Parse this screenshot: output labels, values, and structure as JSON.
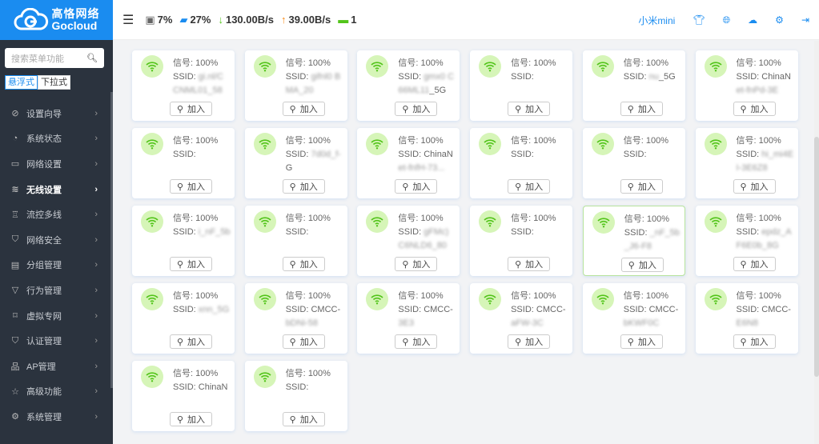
{
  "brand": {
    "cn": "高恪网络",
    "en": "Gocloud",
    "color": "#1a8cf0"
  },
  "sidebar": {
    "search_placeholder": "搜索菜单功能",
    "modes": [
      "悬浮式",
      "下拉式"
    ],
    "active_mode": 0,
    "items": [
      {
        "label": "设置向导",
        "icon": "compass-icon",
        "glyph": "⊘"
      },
      {
        "label": "系统状态",
        "icon": "gauge-icon",
        "glyph": "◔"
      },
      {
        "label": "网络设置",
        "icon": "monitor-icon",
        "glyph": "▭"
      },
      {
        "label": "无线设置",
        "icon": "wifi-icon",
        "glyph": "≋",
        "active": true
      },
      {
        "label": "流控多线",
        "icon": "flow-icon",
        "glyph": "♖"
      },
      {
        "label": "网络安全",
        "icon": "shield-icon",
        "glyph": "⛉"
      },
      {
        "label": "分组管理",
        "icon": "group-icon",
        "glyph": "▤"
      },
      {
        "label": "行为管理",
        "icon": "filter-icon",
        "glyph": "▽"
      },
      {
        "label": "虚拟专网",
        "icon": "vpn-icon",
        "glyph": "⌑"
      },
      {
        "label": "认证管理",
        "icon": "shield-check-icon",
        "glyph": "⛉"
      },
      {
        "label": "AP管理",
        "icon": "sitemap-icon",
        "glyph": "品"
      },
      {
        "label": "高级功能",
        "icon": "pin-icon",
        "glyph": "☆"
      },
      {
        "label": "系统管理",
        "icon": "gear-icon",
        "glyph": "⚙"
      }
    ]
  },
  "topbar": {
    "cpu": "7%",
    "memory": "27%",
    "download": "130.00B/s",
    "upload": "39.00B/s",
    "devices": "1",
    "device_name": "小米mini",
    "colors": {
      "download": "#52c41a",
      "upload": "#fa8c16",
      "devices": "#52c41a",
      "accent": "#1a8cf0"
    }
  },
  "cards": {
    "signal_label": "信号:",
    "ssid_label": "SSID:",
    "join_label": "加入",
    "items": [
      {
        "signal": "100%",
        "ssid": "",
        "blur": "gi.nl/C CNML01_58"
      },
      {
        "signal": "100%",
        "ssid": "",
        "blur": "gifnl0 BMA_20"
      },
      {
        "signal": "100%",
        "ssid": "",
        "blur": "gmx0 C66ML11",
        "tail": "_5G"
      },
      {
        "signal": "100%",
        "ssid": "",
        "blur": ""
      },
      {
        "signal": "100%",
        "ssid": "",
        "blur": "nu",
        "tail": "_5G"
      },
      {
        "signal": "100%",
        "ssid": "ChinaN",
        "blur": "et-fnPd-3E"
      },
      {
        "signal": "100%",
        "ssid": "",
        "blur": ""
      },
      {
        "signal": "100%",
        "ssid": "",
        "blur": "7d0d_f-",
        "tail": "G"
      },
      {
        "signal": "100%",
        "ssid": "ChinaN",
        "blur": "et-fnfH-73..."
      },
      {
        "signal": "100%",
        "ssid": "",
        "blur": ""
      },
      {
        "signal": "100%",
        "ssid": "",
        "blur": ""
      },
      {
        "signal": "100%",
        "ssid": "",
        "blur": "hi_mi4E I-3E6Z8"
      },
      {
        "signal": "100%",
        "ssid": "",
        "blur": "i_nF_5b"
      },
      {
        "signal": "100%",
        "ssid": "",
        "blur": ""
      },
      {
        "signal": "100%",
        "ssid": "",
        "blur": "gFMc) C6NLD6_80"
      },
      {
        "signal": "100%",
        "ssid": "",
        "blur": ""
      },
      {
        "signal": "100%",
        "ssid": "",
        "blur": "_nF_5b _J6-F8",
        "hl": true
      },
      {
        "signal": "100%",
        "ssid": "",
        "blur": "epdz_A F6E0b_8G"
      },
      {
        "signal": "100%",
        "ssid": "",
        "blur": "xnn_5G"
      },
      {
        "signal": "100%",
        "ssid": "CMCC-",
        "blur": "bDNi-58"
      },
      {
        "signal": "100%",
        "ssid": "CMCC-",
        "blur": "3E3"
      },
      {
        "signal": "100%",
        "ssid": "CMCC-",
        "blur": "aFW-3C"
      },
      {
        "signal": "100%",
        "ssid": "CMCC-",
        "blur": "bKWF0C"
      },
      {
        "signal": "100%",
        "ssid": "CMCC-",
        "blur": "E6N8"
      },
      {
        "signal": "100%",
        "ssid": "ChinaN",
        "blur": ""
      },
      {
        "signal": "100%",
        "ssid": "",
        "blur": ""
      }
    ]
  }
}
